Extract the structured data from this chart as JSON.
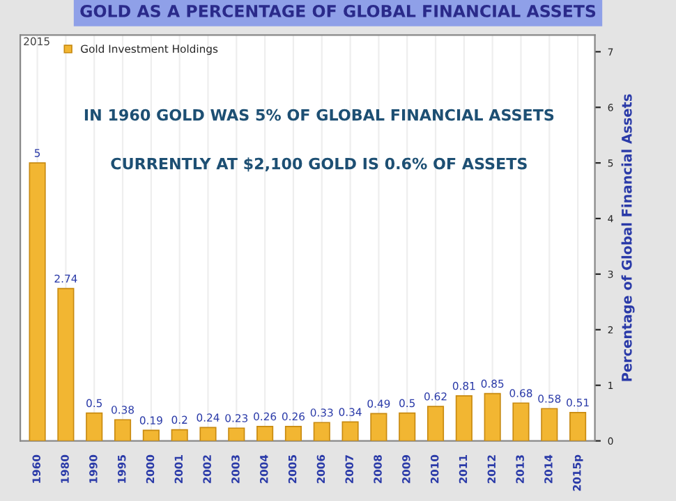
{
  "chart_data": {
    "type": "bar",
    "title": "GOLD AS A PERCENTAGE OF GLOBAL FINANCIAL ASSETS",
    "ylabel": "Percentage of Global Financial Assets",
    "categories": [
      "1960",
      "1980",
      "1990",
      "1995",
      "2000",
      "2001",
      "2002",
      "2003",
      "2004",
      "2005",
      "2006",
      "2007",
      "2008",
      "2009",
      "2010",
      "2011",
      "2012",
      "2013",
      "2014",
      "2015p"
    ],
    "series": [
      {
        "name": "Gold Investment Holdings",
        "color": "#f2b632",
        "values": [
          5,
          2.74,
          0.5,
          0.38,
          0.19,
          0.2,
          0.24,
          0.23,
          0.26,
          0.26,
          0.33,
          0.34,
          0.49,
          0.5,
          0.62,
          0.81,
          0.85,
          0.68,
          0.58,
          0.51
        ]
      }
    ],
    "data_labels": true,
    "ylim": [
      0,
      7.3
    ],
    "yticks": [
      0,
      1,
      2,
      3,
      4,
      5,
      6,
      7
    ],
    "grid": "x",
    "legend": "top left",
    "annotations": [
      "2015",
      "IN 1960 GOLD WAS 5% OF GLOBAL FINANCIAL ASSETS",
      "CURRENTLY AT $2,100 GOLD IS 0.6% OF ASSETS"
    ]
  }
}
